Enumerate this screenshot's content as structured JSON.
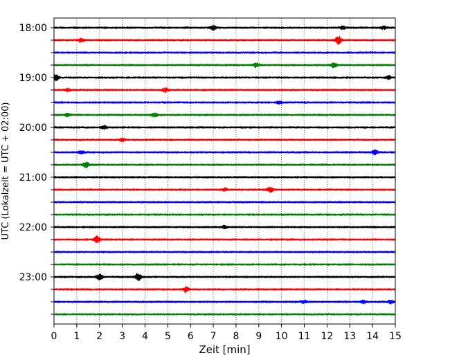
{
  "chart_data": {
    "type": "line",
    "title": "",
    "xlabel": "Zeit  [min]",
    "ylabel": "UTC (Lokalzeit = UTC + 02:00)",
    "xlim": [
      0,
      15
    ],
    "x_ticks": [
      "0",
      "1",
      "2",
      "3",
      "4",
      "5",
      "6",
      "7",
      "8",
      "9",
      "10",
      "11",
      "12",
      "13",
      "14",
      "15"
    ],
    "y_tick_labels": [
      "18:00",
      "19:00",
      "20:00",
      "21:00",
      "22:00",
      "23:00"
    ],
    "grid": "vertical dotted",
    "trace_minutes": 15,
    "traces_count": 24,
    "trace_colors": [
      "#000000",
      "#ff0000",
      "#0000ff",
      "#008000"
    ],
    "series": [
      {
        "start": "18:00",
        "events": [
          [
            7.0,
            3
          ],
          [
            12.7,
            2
          ],
          [
            14.5,
            2
          ]
        ]
      },
      {
        "start": "18:15",
        "events": [
          [
            1.2,
            3
          ],
          [
            12.5,
            6
          ]
        ]
      },
      {
        "start": "18:30",
        "events": []
      },
      {
        "start": "18:45",
        "events": [
          [
            8.9,
            3
          ],
          [
            12.3,
            3
          ]
        ]
      },
      {
        "start": "19:00",
        "events": [
          [
            0.1,
            4
          ],
          [
            14.7,
            2
          ]
        ]
      },
      {
        "start": "19:15",
        "events": [
          [
            0.6,
            2
          ],
          [
            4.9,
            3
          ]
        ]
      },
      {
        "start": "19:30",
        "events": [
          [
            9.9,
            2
          ]
        ]
      },
      {
        "start": "19:45",
        "events": [
          [
            0.6,
            2
          ],
          [
            4.4,
            3
          ]
        ]
      },
      {
        "start": "20:00",
        "events": [
          [
            2.2,
            2
          ]
        ]
      },
      {
        "start": "20:15",
        "events": [
          [
            3.0,
            2
          ]
        ]
      },
      {
        "start": "20:30",
        "events": [
          [
            1.2,
            2
          ],
          [
            14.1,
            3
          ]
        ]
      },
      {
        "start": "20:45",
        "events": [
          [
            1.4,
            4
          ]
        ]
      },
      {
        "start": "21:00",
        "events": []
      },
      {
        "start": "21:15",
        "events": [
          [
            7.5,
            2
          ],
          [
            9.5,
            4
          ]
        ]
      },
      {
        "start": "21:30",
        "events": []
      },
      {
        "start": "21:45",
        "events": []
      },
      {
        "start": "22:00",
        "events": [
          [
            7.5,
            2
          ]
        ]
      },
      {
        "start": "22:15",
        "events": [
          [
            1.9,
            5
          ]
        ]
      },
      {
        "start": "22:30",
        "events": []
      },
      {
        "start": "22:45",
        "events": []
      },
      {
        "start": "23:00",
        "events": [
          [
            2.0,
            5
          ],
          [
            3.7,
            5
          ]
        ]
      },
      {
        "start": "23:15",
        "events": [
          [
            5.8,
            4
          ]
        ]
      },
      {
        "start": "23:30",
        "events": [
          [
            11.0,
            2
          ],
          [
            13.6,
            2
          ],
          [
            14.8,
            2
          ]
        ]
      },
      {
        "start": "23:45",
        "events": []
      }
    ]
  }
}
